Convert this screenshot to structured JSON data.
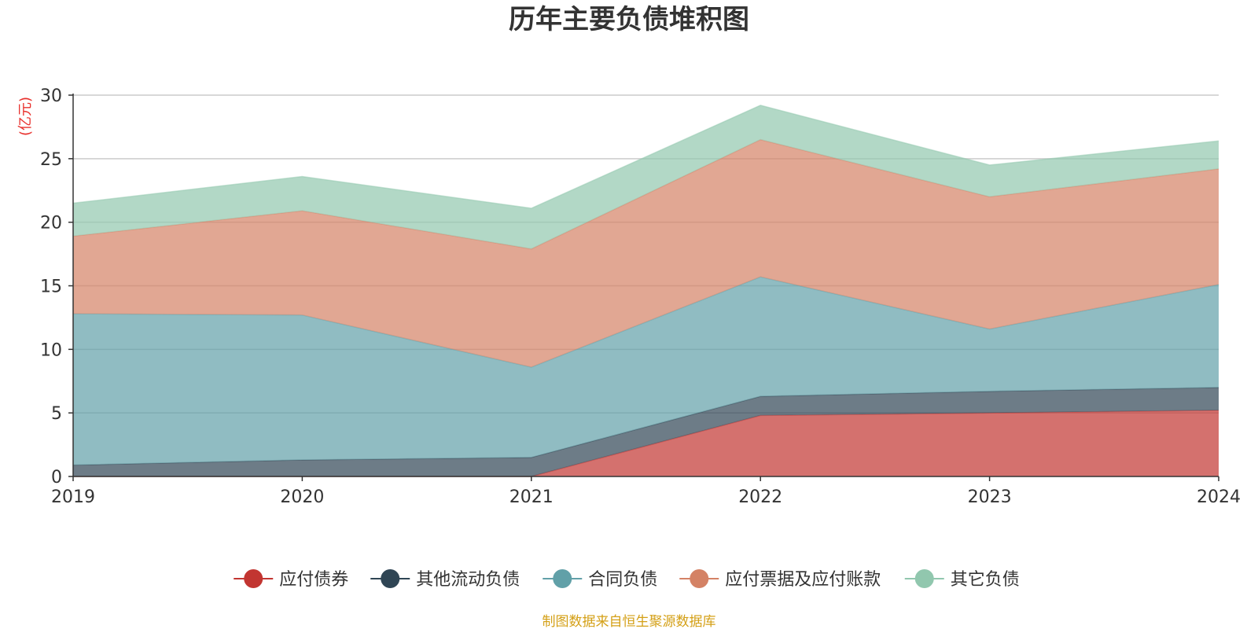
{
  "chart_data": {
    "type": "area",
    "stacked": true,
    "title": "历年主要负债堆积图",
    "unit_label": "(亿元)",
    "xlabel": "",
    "ylabel": "(亿元)",
    "categories": [
      "2019",
      "2020",
      "2021",
      "2022",
      "2023",
      "2024"
    ],
    "ylim": [
      0,
      30
    ],
    "yticks": [
      0,
      5,
      10,
      15,
      20,
      25,
      30
    ],
    "grid": true,
    "legend_position": "bottom",
    "series": [
      {
        "name": "应付债券",
        "color": "#c23531",
        "values": [
          0,
          0,
          0,
          4.8,
          5.0,
          5.2
        ]
      },
      {
        "name": "其他流动负债",
        "color": "#2f4554",
        "values": [
          0.9,
          1.3,
          1.5,
          1.5,
          1.7,
          1.8
        ]
      },
      {
        "name": "合同负债",
        "color": "#61a0a8",
        "values": [
          11.9,
          11.4,
          7.1,
          9.4,
          4.9,
          8.1
        ]
      },
      {
        "name": "应付票据及应付账款",
        "color": "#d48265",
        "values": [
          6.1,
          8.2,
          9.3,
          10.8,
          10.4,
          9.1
        ]
      },
      {
        "name": "其它负债",
        "color": "#91c7ae",
        "values": [
          2.6,
          2.7,
          3.2,
          2.7,
          2.5,
          2.2
        ]
      }
    ],
    "source_note": "制图数据来自恒生聚源数据库"
  }
}
